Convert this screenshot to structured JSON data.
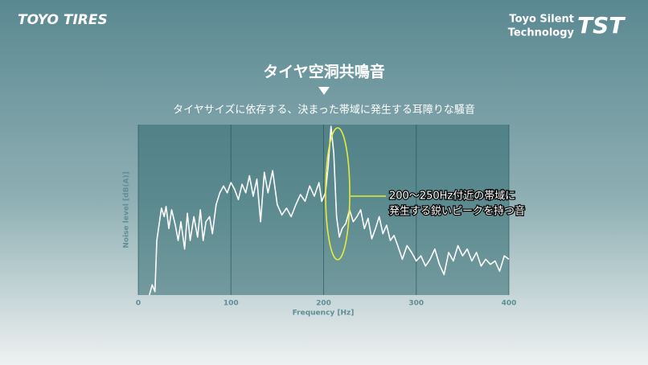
{
  "brand": {
    "left": "TOYO TIRES",
    "right_line1": "Toyo Silent",
    "right_line2": "Technology",
    "right_mark": "TST"
  },
  "chart_data": {
    "type": "line",
    "title": "タイヤ空洞共鳴音",
    "subtitle": "タイヤサイズに依存する、決まった帯域に発生する耳障りな騒音",
    "x_label": "Frequency [Hz]",
    "y_label": "Noise level [dB(A)]",
    "annotations": [
      "200～250Hz付近の帯域に",
      "発生する鋭いピークを持つ音"
    ],
    "xlim": [
      0,
      400
    ],
    "xticks": [
      0,
      100,
      200,
      300,
      400
    ],
    "ylim": [
      0,
      100
    ],
    "grid": true,
    "series": [
      {
        "color": "#ffffff",
        "x": [
          12,
          15,
          18,
          20,
          25,
          28,
          30,
          33,
          36,
          40,
          43,
          46,
          50,
          53,
          56,
          60,
          64,
          67,
          70,
          73,
          77,
          80,
          84,
          88,
          92,
          96,
          100,
          104,
          108,
          112,
          116,
          120,
          124,
          128,
          132,
          136,
          140,
          145,
          150,
          155,
          160,
          165,
          170,
          175,
          180,
          185,
          190,
          195,
          198,
          202,
          205,
          208,
          211,
          214,
          217,
          220,
          224,
          228,
          232,
          236,
          240,
          244,
          248,
          252,
          256,
          260,
          264,
          268,
          272,
          276,
          280,
          285,
          290,
          295,
          300,
          305,
          310,
          315,
          320,
          325,
          330,
          335,
          340,
          345,
          350,
          355,
          360,
          365,
          370,
          375,
          380,
          385,
          390,
          395,
          400
        ],
        "values": [
          0,
          6,
          2,
          32,
          51,
          46,
          52,
          39,
          50,
          41,
          32,
          43,
          27,
          48,
          32,
          46,
          34,
          50,
          32,
          43,
          46,
          36,
          53,
          60,
          64,
          60,
          66,
          62,
          56,
          65,
          60,
          70,
          58,
          68,
          43,
          72,
          60,
          73,
          53,
          47,
          51,
          46,
          53,
          59,
          55,
          64,
          58,
          66,
          55,
          60,
          76,
          99,
          83,
          46,
          34,
          39,
          42,
          50,
          43,
          46,
          50,
          39,
          45,
          33,
          39,
          46,
          36,
          41,
          32,
          35,
          29,
          21,
          29,
          25,
          20,
          23,
          17,
          21,
          27,
          18,
          12,
          25,
          20,
          29,
          23,
          27,
          20,
          25,
          17,
          21,
          18,
          20,
          14,
          23,
          21
        ]
      }
    ]
  }
}
